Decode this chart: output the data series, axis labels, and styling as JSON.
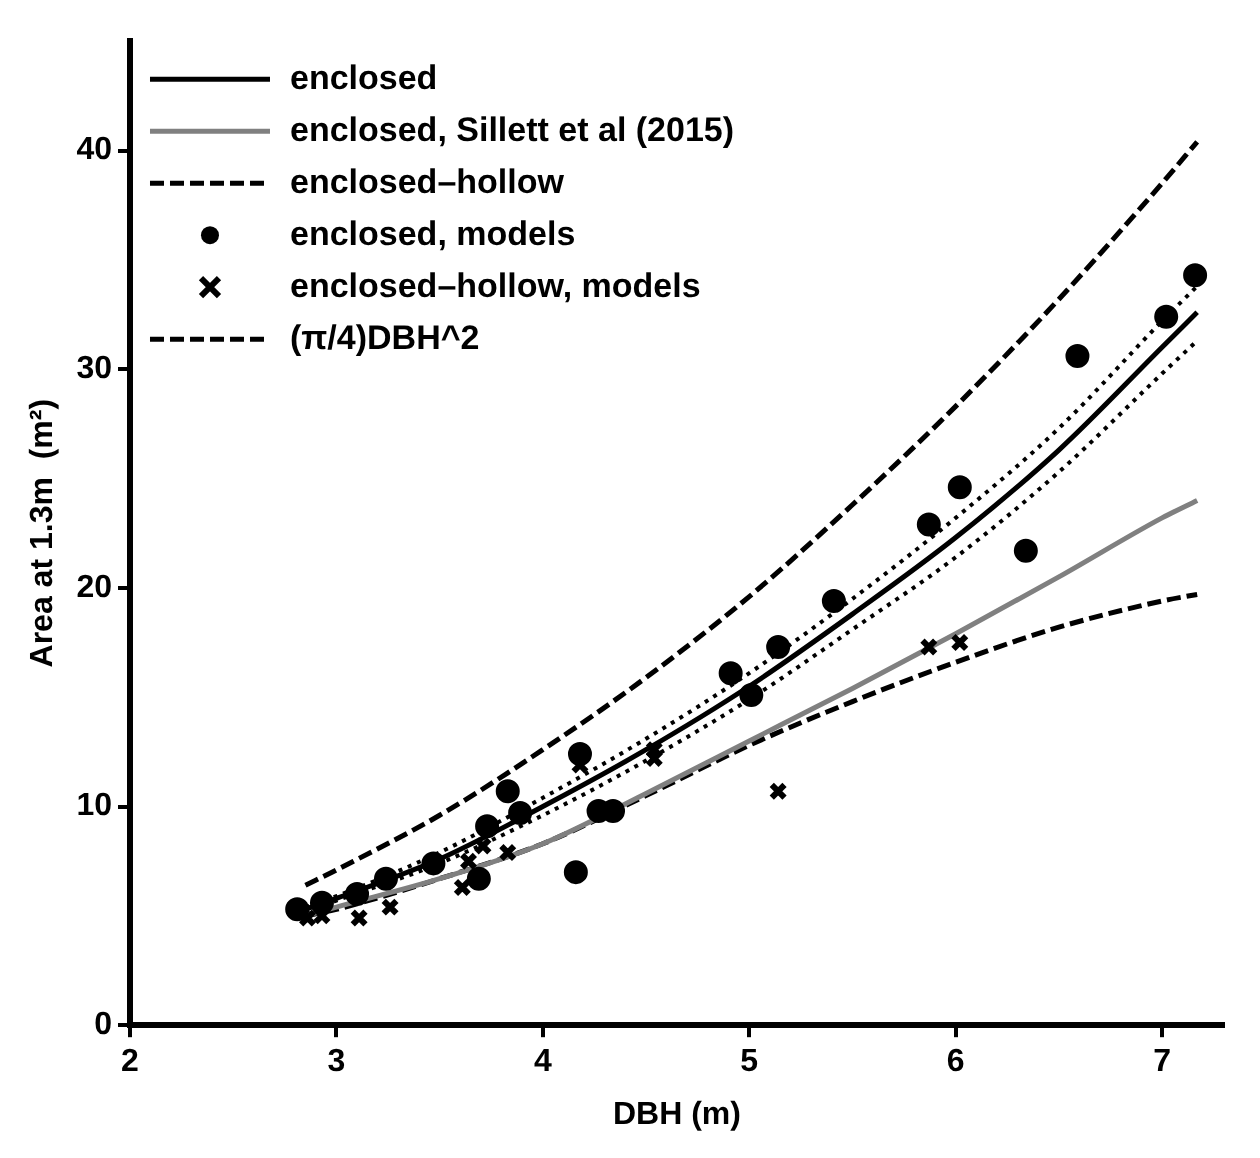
{
  "chart_data": {
    "type": "line",
    "xlabel": "DBH (m)",
    "ylabel": "Area at 1.3m  (m²)",
    "xlim": [
      2,
      7.3
    ],
    "ylim": [
      0,
      45
    ],
    "xticks": [
      2,
      3,
      4,
      5,
      6,
      7
    ],
    "yticks": [
      0,
      10,
      20,
      30,
      40
    ],
    "grid": false,
    "legend": "top left",
    "series": [
      {
        "name": "enclosed",
        "color": "#000000",
        "line_style": "solid",
        "marker": "none",
        "x": [
          2.85,
          3,
          3.5,
          4,
          4.5,
          5,
          5.5,
          6,
          6.5,
          7,
          7.17
        ],
        "values": [
          5.3,
          5.8,
          7.6,
          10.0,
          12.6,
          15.5,
          18.8,
          22.3,
          26.3,
          31.0,
          32.6
        ]
      },
      {
        "color": "#000000",
        "line_style": "dotted",
        "marker": "none",
        "x": [
          2.85,
          3,
          3.5,
          4,
          4.5,
          5,
          5.5,
          6,
          6.5,
          7,
          7.17
        ],
        "values": [
          5.2,
          5.7,
          7.4,
          9.6,
          12.1,
          14.9,
          18.1,
          21.4,
          25.3,
          29.8,
          31.3
        ]
      },
      {
        "color": "#000000",
        "line_style": "dotted",
        "marker": "none",
        "x": [
          2.85,
          3,
          3.5,
          4,
          4.5,
          5,
          5.5,
          6,
          6.5,
          7,
          7.17
        ],
        "values": [
          5.4,
          5.9,
          7.9,
          10.4,
          13.1,
          16.1,
          19.5,
          23.2,
          27.3,
          32.2,
          33.8
        ]
      },
      {
        "name": "enclosed, Sillett et al (2015)",
        "color": "#808080",
        "line_style": "solid",
        "marker": "none",
        "x": [
          2.85,
          3,
          3.5,
          4,
          4.5,
          5,
          5.5,
          6,
          6.5,
          7,
          7.17
        ],
        "values": [
          5.0,
          5.4,
          6.7,
          8.3,
          10.6,
          13.0,
          15.4,
          17.9,
          20.5,
          23.2,
          24.0
        ]
      },
      {
        "name": "enclosed–hollow",
        "color": "#000000",
        "line_style": "dashed",
        "marker": "none",
        "x": [
          2.85,
          3,
          3.5,
          4,
          4.5,
          5,
          5.5,
          6,
          6.5,
          7,
          7.17
        ],
        "values": [
          5.0,
          5.3,
          6.7,
          8.3,
          10.5,
          12.8,
          14.8,
          16.6,
          18.2,
          19.4,
          19.7
        ]
      },
      {
        "name": "enclosed, models",
        "type": "scatter",
        "color": "#000000",
        "marker": "circle",
        "x": [
          2.81,
          2.93,
          3.1,
          3.24,
          3.47,
          3.69,
          3.73,
          3.83,
          3.89,
          4.16,
          4.18,
          4.27,
          4.34,
          4.91,
          5.01,
          5.14,
          5.41,
          5.87,
          6.02,
          6.34,
          6.59,
          7.02,
          7.16
        ],
        "values": [
          5.3,
          5.6,
          6.0,
          6.7,
          7.4,
          6.7,
          9.1,
          10.7,
          9.7,
          7.0,
          12.4,
          9.8,
          9.8,
          16.1,
          15.1,
          17.3,
          19.4,
          22.9,
          24.6,
          21.7,
          30.6,
          32.4,
          34.3
        ]
      },
      {
        "name": "enclosed–hollow, models",
        "type": "scatter",
        "color": "#000000",
        "marker": "cross",
        "x": [
          2.86,
          2.93,
          3.11,
          3.26,
          3.61,
          3.64,
          3.71,
          3.83,
          4.18,
          4.54,
          4.54,
          5.14,
          5.87,
          6.02
        ],
        "values": [
          4.9,
          5.0,
          4.9,
          5.4,
          6.3,
          7.5,
          8.2,
          7.9,
          11.9,
          12.2,
          12.6,
          10.7,
          17.3,
          17.5
        ]
      },
      {
        "name": "(π/4)DBH^2",
        "color": "#000000",
        "line_style": "dashed",
        "marker": "none",
        "x": [
          2.85,
          3,
          3.5,
          4,
          4.5,
          5,
          5.5,
          6,
          6.5,
          7,
          7.17
        ],
        "values": [
          6.4,
          7.1,
          9.6,
          12.6,
          15.9,
          19.6,
          23.8,
          28.3,
          33.2,
          38.5,
          40.4
        ]
      }
    ]
  }
}
